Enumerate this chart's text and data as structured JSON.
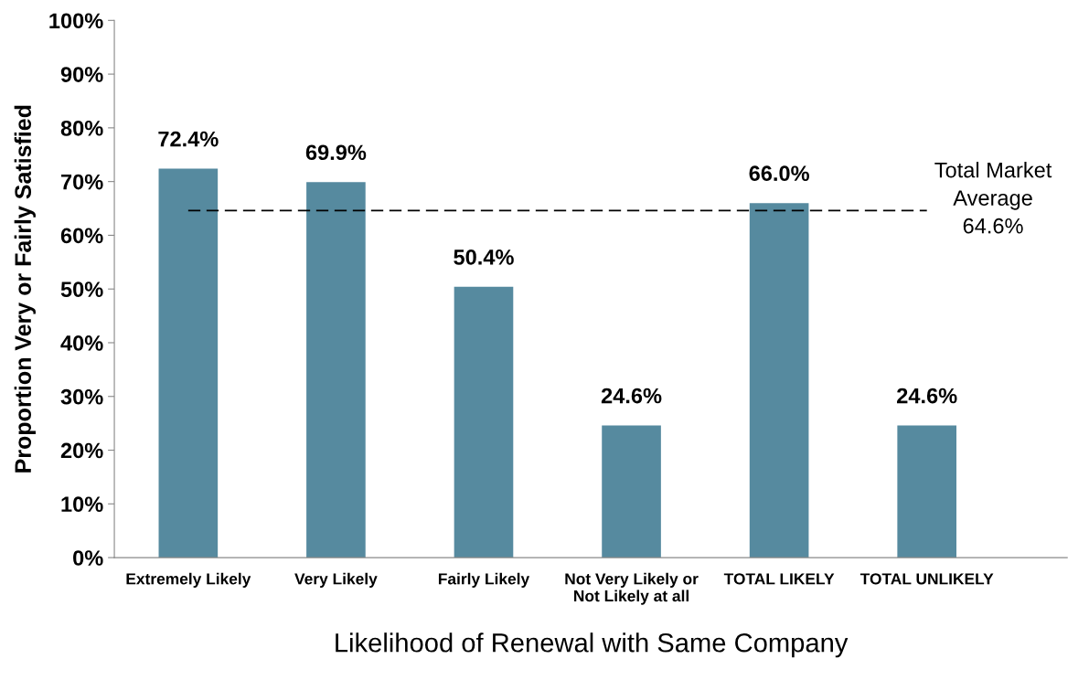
{
  "chart_data": {
    "type": "bar",
    "xlabel": "Likelihood of Renewal with Same Company",
    "ylabel": "Proportion Very or Fairly Satisfied",
    "categories": [
      "Extremely Likely",
      "Very Likely",
      "Fairly Likely",
      "Not Very Likely or\nNot Likely at all",
      "TOTAL LIKELY",
      "TOTAL UNLIKELY"
    ],
    "values": [
      72.4,
      69.9,
      50.4,
      24.6,
      66.0,
      24.6
    ],
    "value_labels": [
      "72.4%",
      "69.9%",
      "50.4%",
      "24.6%",
      "66.0%",
      "24.6%"
    ],
    "color": "#568a9f",
    "ylim": [
      0,
      100
    ],
    "yticks": [
      {
        "value": 0,
        "label": "0%"
      },
      {
        "value": 10,
        "label": "10%"
      },
      {
        "value": 20,
        "label": "20%"
      },
      {
        "value": 30,
        "label": "30%"
      },
      {
        "value": 40,
        "label": "40%"
      },
      {
        "value": 50,
        "label": "50%"
      },
      {
        "value": 60,
        "label": "60%"
      },
      {
        "value": 70,
        "label": "70%"
      },
      {
        "value": 80,
        "label": "80%"
      },
      {
        "value": 90,
        "label": "90%"
      },
      {
        "value": 100,
        "label": "100%"
      }
    ],
    "ref_lines": [
      {
        "axis": "y",
        "value": 64.6,
        "label": "Total Market\nAverage\n64.6%",
        "color": "#000000",
        "line_style": "dashed"
      }
    ],
    "grid": false,
    "legend": false
  }
}
